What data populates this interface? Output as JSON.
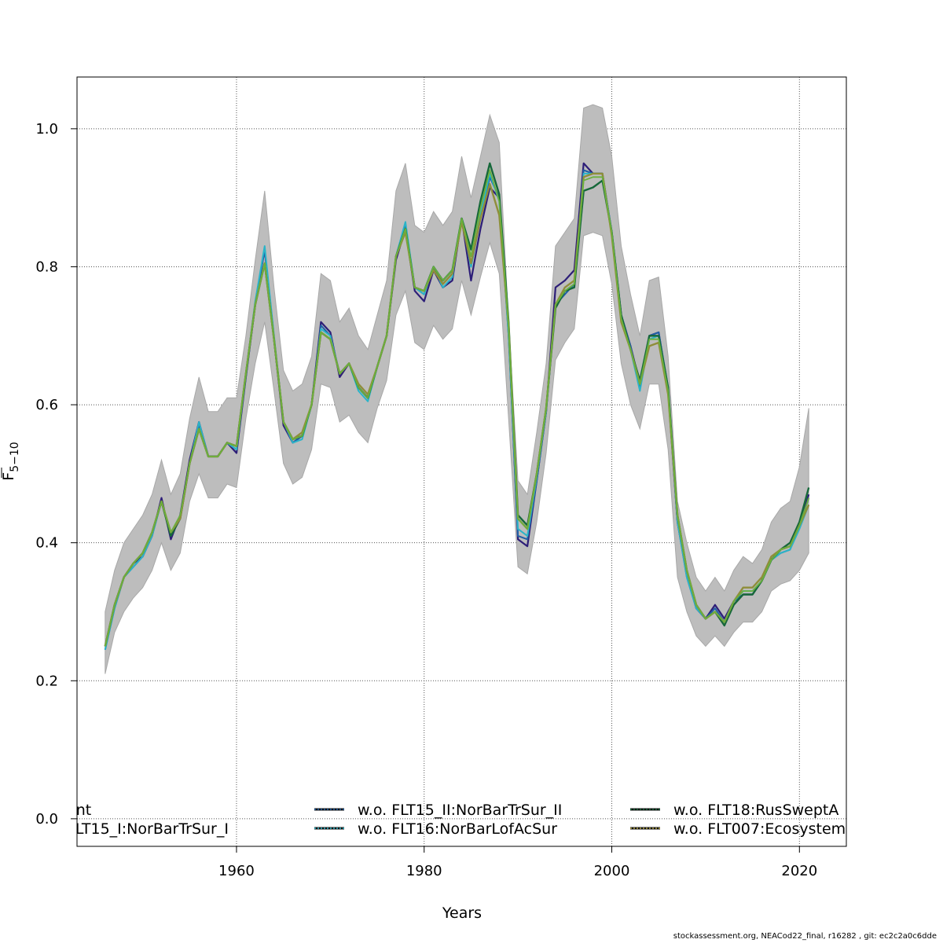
{
  "chart_data": {
    "type": "line",
    "xlabel": "Years",
    "ylabel_base": "F",
    "ylabel_sub": "5−10",
    "xlim": [
      1943,
      2025
    ],
    "ylim": [
      -0.04,
      1.075
    ],
    "xticks": [
      1960,
      1980,
      2000,
      2020
    ],
    "yticks": [
      0.0,
      0.2,
      0.4,
      0.6,
      0.8,
      1.0
    ],
    "ytick_labels": [
      "0.0",
      "0.2",
      "0.4",
      "0.6",
      "0.8",
      "1.0"
    ],
    "grid": true,
    "legend_position": "bottom",
    "x": [
      1946,
      1947,
      1948,
      1949,
      1950,
      1951,
      1952,
      1953,
      1954,
      1955,
      1956,
      1957,
      1958,
      1959,
      1960,
      1961,
      1962,
      1963,
      1964,
      1965,
      1966,
      1967,
      1968,
      1969,
      1970,
      1971,
      1972,
      1973,
      1974,
      1975,
      1976,
      1977,
      1978,
      1979,
      1980,
      1981,
      1982,
      1983,
      1984,
      1985,
      1986,
      1987,
      1988,
      1989,
      1990,
      1991,
      1992,
      1993,
      1994,
      1995,
      1996,
      1997,
      1998,
      1999,
      2000,
      2001,
      2002,
      2003,
      2004,
      2005,
      2006,
      2007,
      2008,
      2009,
      2010,
      2011,
      2012,
      2013,
      2014,
      2015,
      2016,
      2017,
      2018,
      2019,
      2020,
      2021
    ],
    "band_upper": [
      0.3,
      0.36,
      0.4,
      0.42,
      0.44,
      0.47,
      0.52,
      0.47,
      0.5,
      0.58,
      0.64,
      0.59,
      0.59,
      0.61,
      0.61,
      0.7,
      0.81,
      0.91,
      0.77,
      0.65,
      0.62,
      0.63,
      0.67,
      0.79,
      0.78,
      0.72,
      0.74,
      0.7,
      0.68,
      0.73,
      0.78,
      0.91,
      0.95,
      0.86,
      0.85,
      0.88,
      0.86,
      0.88,
      0.96,
      0.9,
      0.96,
      1.02,
      0.98,
      0.72,
      0.49,
      0.47,
      0.56,
      0.66,
      0.83,
      0.85,
      0.87,
      1.03,
      1.035,
      1.03,
      0.96,
      0.83,
      0.76,
      0.7,
      0.78,
      0.785,
      0.67,
      0.46,
      0.4,
      0.35,
      0.33,
      0.35,
      0.33,
      0.36,
      0.38,
      0.37,
      0.39,
      0.43,
      0.45,
      0.46,
      0.51,
      0.595
    ],
    "band_lower": [
      0.21,
      0.27,
      0.3,
      0.32,
      0.335,
      0.36,
      0.4,
      0.36,
      0.385,
      0.46,
      0.5,
      0.465,
      0.465,
      0.485,
      0.48,
      0.58,
      0.66,
      0.72,
      0.62,
      0.515,
      0.485,
      0.495,
      0.535,
      0.63,
      0.625,
      0.575,
      0.585,
      0.56,
      0.545,
      0.595,
      0.635,
      0.73,
      0.765,
      0.69,
      0.68,
      0.715,
      0.695,
      0.71,
      0.78,
      0.73,
      0.785,
      0.835,
      0.79,
      0.58,
      0.365,
      0.355,
      0.43,
      0.53,
      0.665,
      0.69,
      0.71,
      0.845,
      0.85,
      0.845,
      0.775,
      0.66,
      0.6,
      0.565,
      0.63,
      0.63,
      0.535,
      0.35,
      0.3,
      0.265,
      0.25,
      0.265,
      0.25,
      0.27,
      0.285,
      0.285,
      0.3,
      0.33,
      0.34,
      0.345,
      0.36,
      0.385
    ],
    "series": [
      {
        "color": "#2d1e78",
        "width": 2.2,
        "values": [
          0.25,
          0.31,
          0.35,
          0.37,
          0.38,
          0.41,
          0.465,
          0.405,
          0.44,
          0.52,
          0.575,
          0.525,
          0.525,
          0.545,
          0.53,
          0.64,
          0.745,
          0.825,
          0.695,
          0.57,
          0.545,
          0.555,
          0.6,
          0.72,
          0.705,
          0.64,
          0.66,
          0.625,
          0.61,
          0.655,
          0.7,
          0.81,
          0.855,
          0.765,
          0.75,
          0.795,
          0.77,
          0.78,
          0.87,
          0.78,
          0.855,
          0.915,
          0.9,
          0.71,
          0.405,
          0.395,
          0.49,
          0.59,
          0.77,
          0.78,
          0.795,
          0.95,
          0.935,
          0.935,
          0.85,
          0.73,
          0.685,
          0.63,
          0.7,
          0.705,
          0.62,
          0.43,
          0.355,
          0.305,
          0.29,
          0.31,
          0.29,
          0.315,
          0.325,
          0.325,
          0.345,
          0.375,
          0.39,
          0.395,
          0.425,
          0.47
        ]
      },
      {
        "color": "#1f5fa6",
        "width": 2.0,
        "values": [
          0.245,
          0.305,
          0.35,
          0.365,
          0.38,
          0.41,
          0.46,
          0.41,
          0.435,
          0.515,
          0.57,
          0.525,
          0.525,
          0.545,
          0.535,
          0.64,
          0.745,
          0.825,
          0.695,
          0.575,
          0.545,
          0.555,
          0.6,
          0.715,
          0.7,
          0.645,
          0.66,
          0.625,
          0.61,
          0.655,
          0.7,
          0.815,
          0.86,
          0.77,
          0.76,
          0.8,
          0.775,
          0.79,
          0.87,
          0.8,
          0.87,
          0.93,
          0.9,
          0.7,
          0.41,
          0.405,
          0.49,
          0.59,
          0.745,
          0.76,
          0.775,
          0.94,
          0.935,
          0.935,
          0.85,
          0.73,
          0.685,
          0.625,
          0.7,
          0.705,
          0.625,
          0.43,
          0.35,
          0.305,
          0.29,
          0.305,
          0.285,
          0.315,
          0.325,
          0.325,
          0.345,
          0.375,
          0.385,
          0.39,
          0.425,
          0.465
        ]
      },
      {
        "color": "#2ab4c8",
        "width": 2.0,
        "values": [
          0.245,
          0.305,
          0.35,
          0.365,
          0.38,
          0.41,
          0.46,
          0.41,
          0.435,
          0.515,
          0.575,
          0.525,
          0.525,
          0.545,
          0.535,
          0.645,
          0.75,
          0.83,
          0.7,
          0.575,
          0.545,
          0.55,
          0.6,
          0.71,
          0.7,
          0.645,
          0.66,
          0.62,
          0.605,
          0.655,
          0.7,
          0.815,
          0.865,
          0.77,
          0.76,
          0.8,
          0.77,
          0.785,
          0.87,
          0.8,
          0.875,
          0.935,
          0.895,
          0.7,
          0.42,
          0.41,
          0.495,
          0.59,
          0.745,
          0.765,
          0.775,
          0.935,
          0.935,
          0.935,
          0.85,
          0.725,
          0.68,
          0.62,
          0.695,
          0.7,
          0.625,
          0.43,
          0.35,
          0.305,
          0.29,
          0.3,
          0.285,
          0.315,
          0.33,
          0.33,
          0.345,
          0.375,
          0.385,
          0.39,
          0.42,
          0.455
        ]
      },
      {
        "color": "#16683a",
        "width": 2.4,
        "values": [
          0.25,
          0.31,
          0.35,
          0.37,
          0.385,
          0.415,
          0.46,
          0.41,
          0.435,
          0.515,
          0.565,
          0.525,
          0.525,
          0.545,
          0.54,
          0.645,
          0.745,
          0.805,
          0.695,
          0.575,
          0.55,
          0.555,
          0.6,
          0.705,
          0.695,
          0.645,
          0.66,
          0.625,
          0.61,
          0.655,
          0.7,
          0.815,
          0.855,
          0.77,
          0.765,
          0.8,
          0.78,
          0.795,
          0.87,
          0.825,
          0.895,
          0.95,
          0.905,
          0.72,
          0.44,
          0.425,
          0.5,
          0.595,
          0.74,
          0.765,
          0.77,
          0.91,
          0.915,
          0.925,
          0.85,
          0.73,
          0.68,
          0.635,
          0.7,
          0.7,
          0.625,
          0.44,
          0.36,
          0.31,
          0.29,
          0.3,
          0.28,
          0.31,
          0.325,
          0.325,
          0.345,
          0.375,
          0.39,
          0.4,
          0.43,
          0.48
        ]
      },
      {
        "color": "#8f8e3a",
        "width": 2.4,
        "values": [
          0.25,
          0.31,
          0.35,
          0.37,
          0.385,
          0.415,
          0.46,
          0.415,
          0.435,
          0.515,
          0.565,
          0.525,
          0.525,
          0.545,
          0.54,
          0.645,
          0.745,
          0.805,
          0.695,
          0.575,
          0.55,
          0.56,
          0.6,
          0.705,
          0.695,
          0.645,
          0.66,
          0.63,
          0.615,
          0.655,
          0.7,
          0.815,
          0.85,
          0.77,
          0.765,
          0.795,
          0.775,
          0.79,
          0.865,
          0.805,
          0.87,
          0.92,
          0.875,
          0.715,
          0.435,
          0.42,
          0.5,
          0.595,
          0.745,
          0.77,
          0.78,
          0.93,
          0.935,
          0.935,
          0.845,
          0.72,
          0.68,
          0.63,
          0.685,
          0.69,
          0.615,
          0.44,
          0.36,
          0.31,
          0.29,
          0.3,
          0.285,
          0.315,
          0.335,
          0.335,
          0.35,
          0.38,
          0.39,
          0.395,
          0.425,
          0.455
        ]
      },
      {
        "color": "#6bb03c",
        "width": 1.8,
        "values": [
          0.25,
          0.31,
          0.35,
          0.37,
          0.385,
          0.415,
          0.46,
          0.415,
          0.44,
          0.515,
          0.565,
          0.525,
          0.525,
          0.545,
          0.54,
          0.645,
          0.745,
          0.805,
          0.695,
          0.575,
          0.55,
          0.555,
          0.6,
          0.705,
          0.695,
          0.645,
          0.66,
          0.625,
          0.61,
          0.655,
          0.7,
          0.815,
          0.855,
          0.77,
          0.765,
          0.8,
          0.78,
          0.795,
          0.87,
          0.815,
          0.885,
          0.94,
          0.895,
          0.715,
          0.435,
          0.42,
          0.5,
          0.595,
          0.745,
          0.765,
          0.775,
          0.925,
          0.93,
          0.93,
          0.85,
          0.725,
          0.68,
          0.63,
          0.695,
          0.695,
          0.62,
          0.44,
          0.36,
          0.31,
          0.29,
          0.3,
          0.285,
          0.315,
          0.33,
          0.33,
          0.345,
          0.375,
          0.39,
          0.395,
          0.425,
          0.465
        ]
      }
    ],
    "legend": [
      {
        "label": "ent",
        "color": "#2d1e78",
        "dotted": false
      },
      {
        "label": "FLT15_I:NorBarTrSur_I",
        "color": "#1f5fa6",
        "dotted": false
      },
      {
        "label": "w.o. FLT15_II:NorBarTrSur_II",
        "color": "#1f5fa6",
        "dotted": true
      },
      {
        "label": "w.o. FLT16:NorBarLofAcSur",
        "color": "#2ab4c8",
        "dotted": true
      },
      {
        "label": "w.o. FLT18:RusSweptA",
        "color": "#16683a",
        "dotted": true
      },
      {
        "label": "w.o. FLT007:Ecosystem",
        "color": "#b0a040",
        "dotted": true
      }
    ]
  },
  "footer": "stockassessment.org, NEACod22_final, r16282 , git: ec2c2a0c6dde"
}
